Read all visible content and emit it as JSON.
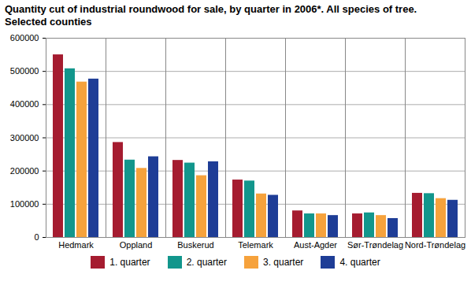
{
  "chart_data": {
    "type": "bar",
    "title": "Quantity cut of industrial roundwood for sale, by quarter in 2006*. All species of tree. Selected counties",
    "categories": [
      "Hedmark",
      "Oppland",
      "Buskerud",
      "Telemark",
      "Aust-Agder",
      "Sør-Trøndelag",
      "Nord-Trøndelag"
    ],
    "series": [
      {
        "name": "1. quarter",
        "color": "#a51c30",
        "values": [
          550000,
          286000,
          232000,
          173000,
          80000,
          71000,
          133000
        ]
      },
      {
        "name": "2. quarter",
        "color": "#12968c",
        "values": [
          508000,
          233000,
          224000,
          170000,
          71000,
          74000,
          132000
        ]
      },
      {
        "name": "3. quarter",
        "color": "#f6a23c",
        "values": [
          468000,
          208000,
          186000,
          131000,
          71000,
          66000,
          117000
        ]
      },
      {
        "name": "4. quarter",
        "color": "#1e3d96",
        "values": [
          477000,
          243000,
          228000,
          127000,
          66000,
          57000,
          112000
        ]
      }
    ],
    "ylim": [
      0,
      600000
    ],
    "yticks": [
      0,
      100000,
      200000,
      300000,
      400000,
      500000,
      600000
    ],
    "grid": true,
    "legend": "bottom"
  }
}
